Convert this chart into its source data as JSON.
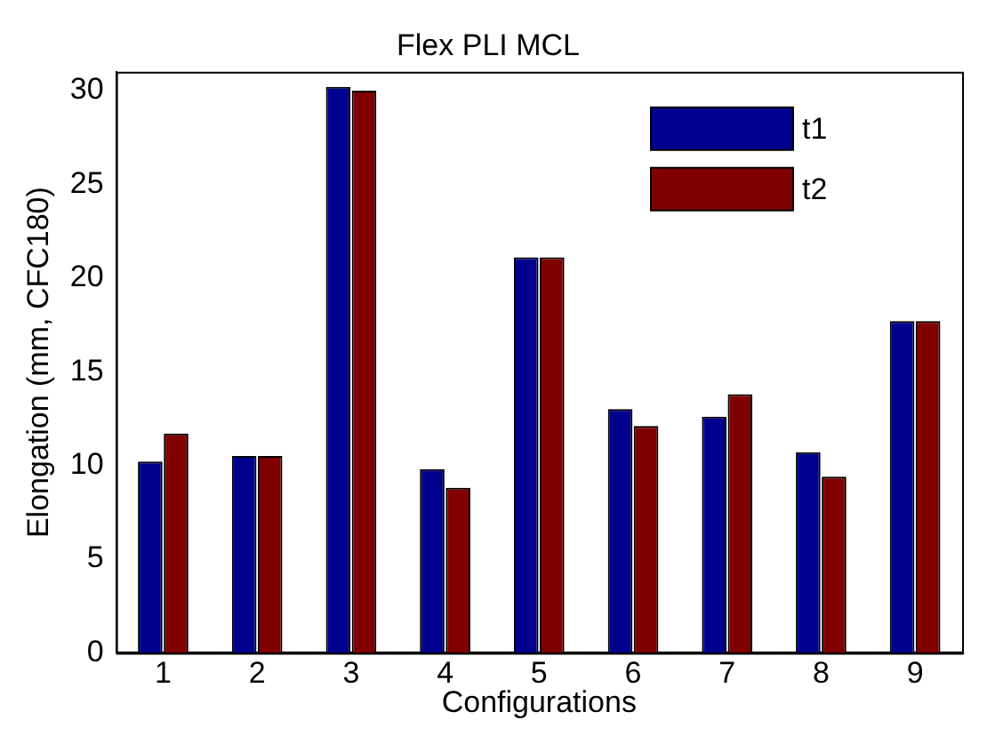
{
  "chart_data": {
    "type": "bar",
    "title": "Flex PLI MCL",
    "xlabel": "Configurations",
    "ylabel": "Elongation (mm, CFC180)",
    "categories": [
      "1",
      "2",
      "3",
      "4",
      "5",
      "6",
      "7",
      "8",
      "9"
    ],
    "series": [
      {
        "name": "t1",
        "color": "#00008f",
        "values": [
          10.2,
          10.5,
          30.2,
          9.8,
          21.1,
          13.0,
          12.6,
          10.7,
          17.7
        ]
      },
      {
        "name": "t2",
        "color": "#800000",
        "values": [
          11.7,
          10.5,
          30.0,
          8.8,
          21.1,
          12.1,
          13.8,
          9.4,
          17.7
        ]
      }
    ],
    "ylim": [
      0,
      31
    ],
    "yticks": [
      0,
      5,
      10,
      15,
      20,
      25,
      30
    ],
    "grid": false,
    "legend": "top right"
  }
}
